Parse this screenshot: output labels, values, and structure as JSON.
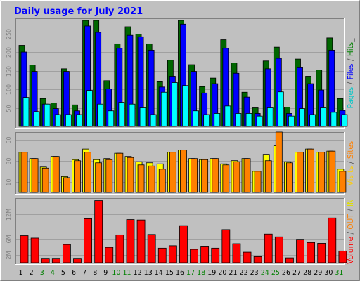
{
  "chart_data": {
    "type": "bar",
    "title": "Daily usage for July 2021",
    "categories": [
      "1",
      "2",
      "3",
      "4",
      "5",
      "6",
      "7",
      "8",
      "9",
      "10",
      "11",
      "12",
      "13",
      "14",
      "15",
      "16",
      "17",
      "18",
      "19",
      "20",
      "21",
      "22",
      "23",
      "24",
      "25",
      "26",
      "27",
      "28",
      "29",
      "30",
      "31"
    ],
    "weekend_days": [
      "3",
      "4",
      "10",
      "11",
      "17",
      "18",
      "24",
      "25",
      "31"
    ],
    "panels": [
      {
        "name": "hits",
        "ylim": [
          0,
          285
        ],
        "yticks": [
          "50",
          "100",
          "150",
          "200",
          "250"
        ],
        "ytick_values": [
          50,
          100,
          150,
          200,
          250
        ],
        "series": [
          {
            "name": "Hits",
            "color": "#006600",
            "values": [
              218,
              165,
              75,
              63,
              155,
              58,
              285,
              285,
              123,
              222,
              268,
              248,
              222,
              120,
              178,
              285,
              166,
              107,
              130,
              233,
              171,
              92,
              50,
              176,
              213,
              52,
              181,
              135,
              152,
              238,
              75
            ]
          },
          {
            "name": "Files",
            "color": "#0000ff",
            "values": [
              200,
              148,
              60,
              48,
              148,
              42,
              270,
              253,
              101,
              210,
              245,
              241,
              205,
              106,
              135,
              275,
              148,
              90,
              115,
              210,
              143,
              79,
              35,
              155,
              183,
              35,
              158,
              115,
              98,
              205,
              43
            ]
          },
          {
            "name": "Pages",
            "color": "#00ffff",
            "values": [
              78,
              40,
              60,
              32,
              32,
              32,
              97,
              60,
              42,
              65,
              60,
              50,
              32,
              92,
              118,
              110,
              42,
              32,
              35,
              55,
              35,
              35,
              28,
              50,
              93,
              28,
              48,
              32,
              50,
              38,
              32
            ]
          }
        ]
      },
      {
        "name": "visits",
        "ylim": [
          0,
          55
        ],
        "yticks": [
          "10",
          "30",
          "50"
        ],
        "ytick_values": [
          10,
          30,
          50
        ],
        "series": [
          {
            "name": "Visits",
            "color": "#ffff00",
            "values": [
              38,
              32,
              24,
              34,
              15,
              31,
              41,
              31,
              32,
              37,
              34,
              29,
              28,
              27,
              38,
              40,
              32,
              31,
              32,
              27,
              30,
              32,
              20,
              36,
              44,
              29,
              38,
              41,
              38,
              39,
              22
            ]
          },
          {
            "name": "Sites",
            "color": "#ff8000",
            "values": [
              38,
              32,
              23,
              34,
              14,
              30,
              38,
              28,
              31,
              37,
              33,
              26,
              25,
              22,
              38,
              40,
              32,
              31,
              32,
              26,
              29,
              32,
              20,
              30,
              57,
              28,
              38,
              41,
              38,
              39,
              20
            ]
          }
        ]
      },
      {
        "name": "volume",
        "ylim": [
          0,
          15.5
        ],
        "yticks": [
          "2M",
          "6M",
          "12M"
        ],
        "ytick_values": [
          2,
          6,
          12
        ],
        "series": [
          {
            "name": "IN",
            "color": "#ff8000",
            "values": [
              0,
              0,
              0,
              0,
              0,
              0,
              0,
              0,
              0,
              0,
              0,
              0,
              0,
              0,
              0,
              0,
              0,
              0,
              0,
              0,
              0,
              0,
              0,
              0,
              0,
              0,
              0,
              0,
              0,
              0,
              0
            ]
          },
          {
            "name": "OUT",
            "color": "#ffff00",
            "values": [
              0,
              0,
              0,
              0,
              0,
              0,
              0,
              0,
              0,
              0,
              0,
              0,
              0,
              0,
              0,
              0,
              0,
              0,
              0,
              0,
              0,
              0,
              0,
              0,
              0,
              0,
              0,
              0,
              0,
              0,
              0
            ]
          },
          {
            "name": "Volume",
            "color": "#ff0000",
            "values": [
              6.7,
              6.1,
              1.1,
              1.1,
              4.5,
              1.1,
              10.9,
              15.4,
              3.8,
              6.9,
              10.7,
              10.6,
              7.0,
              3.6,
              4.2,
              9.2,
              3.3,
              4.1,
              3.6,
              8.2,
              4.7,
              2.6,
              1.5,
              7.1,
              6.4,
              1.2,
              5.8,
              5.0,
              4.8,
              11.1,
              2.9
            ]
          }
        ]
      }
    ],
    "right_labels": [
      {
        "panel": "hits",
        "parts": [
          {
            "text": "Pages",
            "color": "#00c8c8"
          },
          {
            "text": " / ",
            "color": "#555555"
          },
          {
            "text": "Files",
            "color": "#0000ff"
          },
          {
            "text": " / ",
            "color": "#555555"
          },
          {
            "text": "Hits",
            "color": "#008000"
          },
          {
            "text": "_",
            "color": "#555555"
          }
        ]
      },
      {
        "panel": "visits",
        "parts": [
          {
            "text": "Visits",
            "color": "#ffcc00"
          },
          {
            "text": " / ",
            "color": "#555555"
          },
          {
            "text": "Sites",
            "color": "#ff8000"
          }
        ]
      },
      {
        "panel": "volume",
        "parts": [
          {
            "text": "Volume",
            "color": "#ff0000"
          },
          {
            "text": " / ",
            "color": "#555555"
          },
          {
            "text": "OUT",
            "color": "#ff8000"
          },
          {
            "text": " / ",
            "color": "#555555"
          },
          {
            "text": "IN",
            "color": "#e0e000"
          }
        ]
      }
    ]
  }
}
